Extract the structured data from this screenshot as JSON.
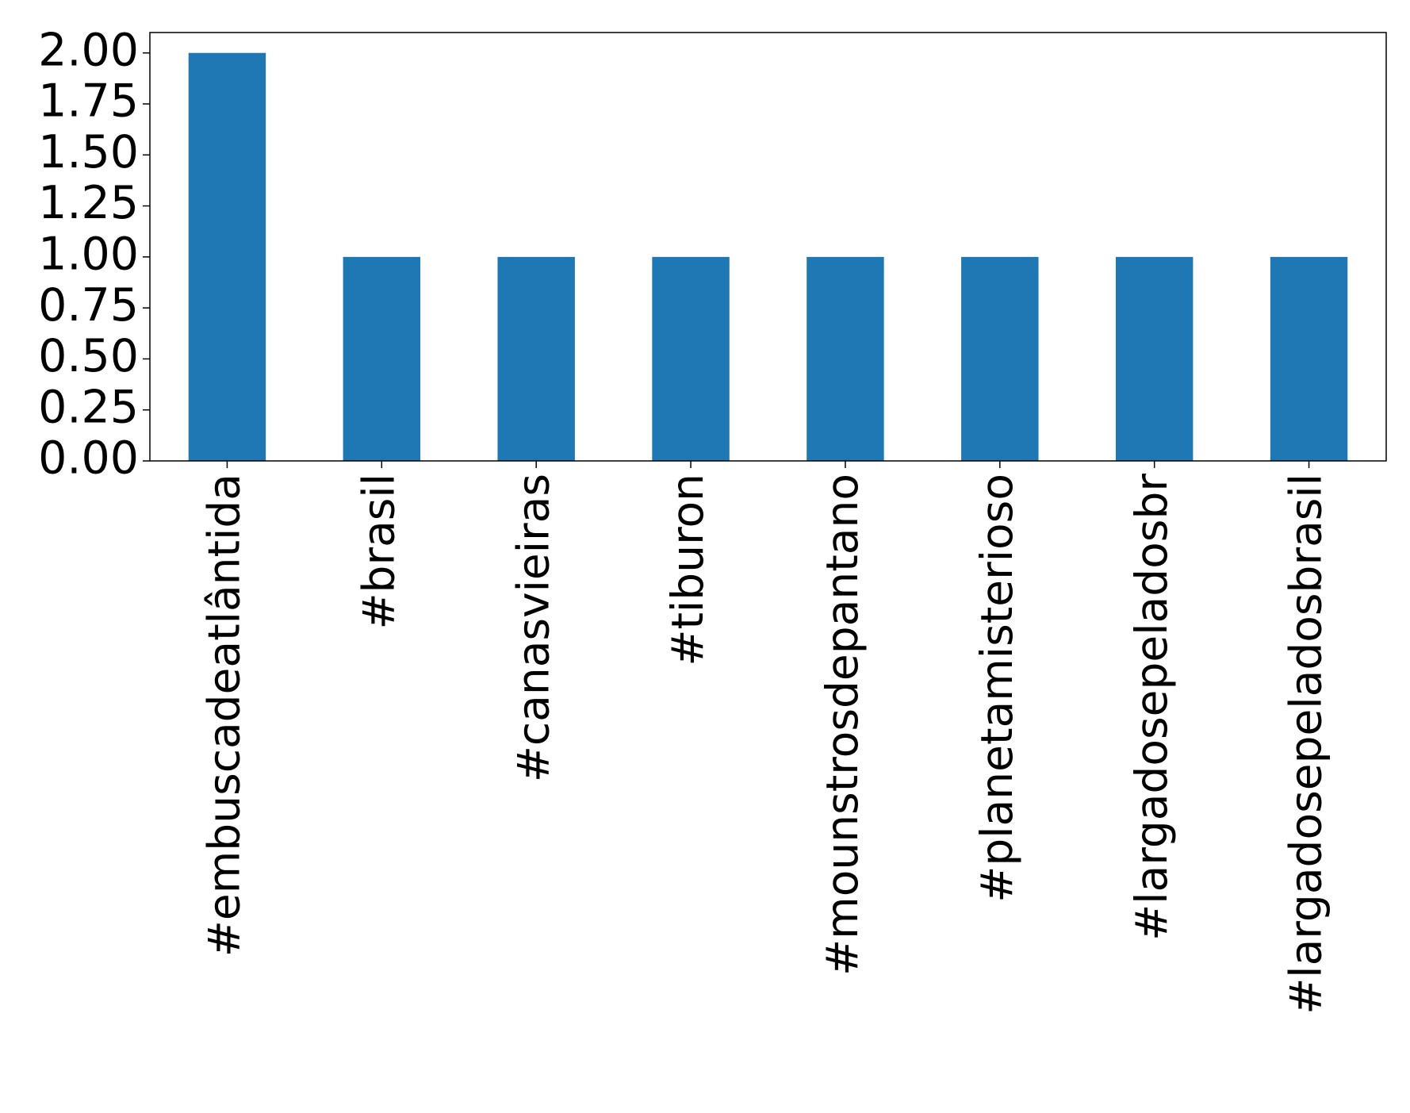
{
  "chart_data": {
    "type": "bar",
    "categories": [
      "#embuscadeatlântida",
      "#brasil",
      "#canasvieiras",
      "#tiburon",
      "#mounstrosdepantano",
      "#planetamisterioso",
      "#largadosepeladosbr",
      "#largadosepeladosbrasil"
    ],
    "values": [
      2,
      1,
      1,
      1,
      1,
      1,
      1,
      1
    ],
    "color": "#1f77b4",
    "ylim": [
      0,
      2.1
    ],
    "yticks": [
      {
        "value": 0,
        "label": "0.00"
      },
      {
        "value": 0.25,
        "label": "0.25"
      },
      {
        "value": 0.5,
        "label": "0.50"
      },
      {
        "value": 0.75,
        "label": "0.75"
      },
      {
        "value": 1,
        "label": "1.00"
      },
      {
        "value": 1.25,
        "label": "1.25"
      },
      {
        "value": 1.5,
        "label": "1.50"
      },
      {
        "value": 1.75,
        "label": "1.75"
      },
      {
        "value": 2,
        "label": "2.00"
      }
    ],
    "grid": false
  }
}
